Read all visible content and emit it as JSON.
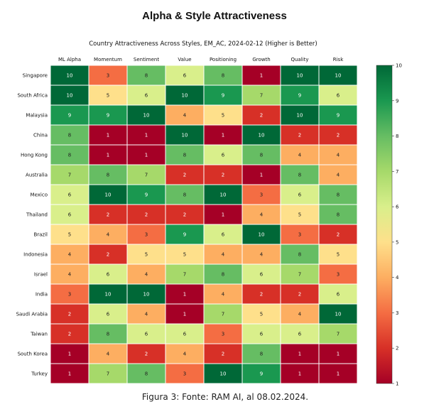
{
  "page": {
    "title": "Alpha & Style Attractiveness",
    "caption": "Figura 3: Fonte: RAM AI, al 08.02.2024."
  },
  "chart_data": {
    "type": "heatmap",
    "title": "Country Attractiveness Across Styles, EM_AC, 2024-02-12 (Higher is Better)",
    "columns": [
      "ML Alpha",
      "Momentum",
      "Sentiment",
      "Value",
      "Positioning",
      "Growth",
      "Quality",
      "Risk"
    ],
    "rows": [
      "Singapore",
      "South Africa",
      "Malaysia",
      "China",
      "Hong Kong",
      "Australia",
      "Mexico",
      "Thailand",
      "Brazil",
      "Indonesia",
      "Israel",
      "India",
      "Saudi Arabia",
      "Taiwan",
      "South Korea",
      "Turkey"
    ],
    "values": [
      [
        10,
        3,
        8,
        6,
        8,
        1,
        10,
        10
      ],
      [
        10,
        5,
        6,
        10,
        9,
        7,
        9,
        6
      ],
      [
        9,
        9,
        10,
        4,
        5,
        2,
        10,
        9
      ],
      [
        8,
        1,
        1,
        10,
        1,
        10,
        2,
        2
      ],
      [
        8,
        1,
        1,
        8,
        6,
        8,
        4,
        4
      ],
      [
        7,
        8,
        7,
        2,
        2,
        1,
        8,
        4
      ],
      [
        6,
        10,
        9,
        8,
        10,
        3,
        6,
        8
      ],
      [
        6,
        2,
        2,
        2,
        1,
        4,
        5,
        8
      ],
      [
        5,
        4,
        3,
        9,
        6,
        10,
        3,
        2
      ],
      [
        4,
        2,
        5,
        5,
        4,
        4,
        8,
        5
      ],
      [
        4,
        6,
        4,
        7,
        8,
        6,
        7,
        3
      ],
      [
        3,
        10,
        10,
        1,
        4,
        2,
        2,
        6
      ],
      [
        2,
        6,
        4,
        1,
        7,
        5,
        4,
        10
      ],
      [
        2,
        8,
        6,
        6,
        3,
        6,
        6,
        7
      ],
      [
        1,
        4,
        2,
        4,
        2,
        8,
        1,
        1
      ],
      [
        1,
        7,
        8,
        3,
        10,
        9,
        1,
        1
      ]
    ],
    "colorbar": {
      "min": 1,
      "max": 10,
      "ticks": [
        "1",
        "2",
        "3",
        "4",
        "5",
        "6",
        "7",
        "8",
        "9",
        "10"
      ],
      "colormap": "RdYlGn"
    },
    "palette": [
      "#a50026",
      "#d73027",
      "#f46d43",
      "#fdae61",
      "#fee08b",
      "#d9ef8b",
      "#a6d96a",
      "#66bd63",
      "#1a9850",
      "#006837"
    ]
  }
}
